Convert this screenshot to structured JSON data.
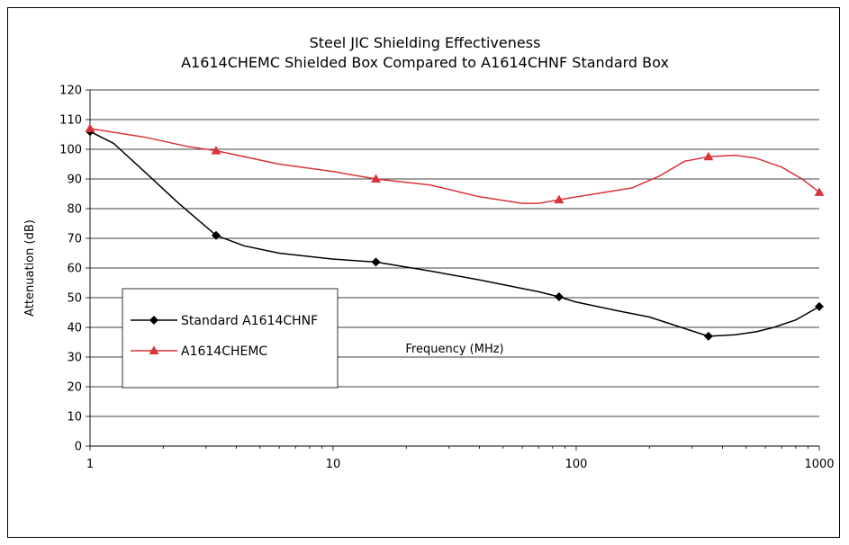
{
  "chart_data": {
    "type": "line",
    "title": "Steel JIC Shielding Effectiveness",
    "subtitle": "A1614CHEMC Shielded Box Compared to A1614CHNF Standard Box",
    "xlabel": "Frequency (MHz)",
    "ylabel": "Attenuation (dB)",
    "x_scale": "log",
    "xlim": [
      1,
      1000
    ],
    "ylim": [
      0,
      120
    ],
    "x_ticks": [
      "1",
      "10",
      "100",
      "1000"
    ],
    "y_ticks": [
      "0",
      "10",
      "20",
      "30",
      "40",
      "50",
      "60",
      "70",
      "80",
      "90",
      "100",
      "110",
      "120"
    ],
    "grid": "horizontal",
    "legend_position": "middle-left",
    "series": [
      {
        "name": "Standard A1614CHNF",
        "color": "#000000",
        "marker": "diamond",
        "x": [
          1,
          1.25,
          1.7,
          2.3,
          3.3,
          4.3,
          6,
          10,
          15,
          25,
          40,
          70,
          85,
          100,
          150,
          200,
          270,
          350,
          450,
          550,
          650,
          800,
          1000
        ],
        "y": [
          106,
          102,
          92,
          82,
          71,
          67.5,
          65,
          63,
          62,
          59,
          56,
          52,
          50.3,
          48.5,
          45.5,
          43.5,
          40,
          37,
          37.5,
          38.5,
          40,
          42.5,
          47
        ],
        "markers_x": [
          1,
          3.3,
          15,
          85,
          350,
          1000
        ],
        "markers_y": [
          106,
          71,
          62,
          50.3,
          37,
          47
        ]
      },
      {
        "name": "A1614CHEMC",
        "color": "#d9343b",
        "marker": "triangle",
        "x": [
          1,
          1.7,
          2.5,
          3.3,
          6,
          10,
          15,
          25,
          40,
          60,
          70,
          85,
          120,
          170,
          220,
          280,
          350,
          450,
          550,
          700,
          850,
          1000
        ],
        "y": [
          107,
          104,
          101,
          99.5,
          95,
          92.5,
          90,
          88,
          84,
          81.8,
          81.8,
          83,
          85,
          87,
          91,
          96,
          97.5,
          98,
          97,
          94,
          90,
          85.5
        ],
        "markers_x": [
          1,
          3.3,
          15,
          85,
          350,
          1000
        ],
        "markers_y": [
          107,
          99.5,
          90,
          83,
          97.5,
          85.5
        ]
      }
    ]
  }
}
